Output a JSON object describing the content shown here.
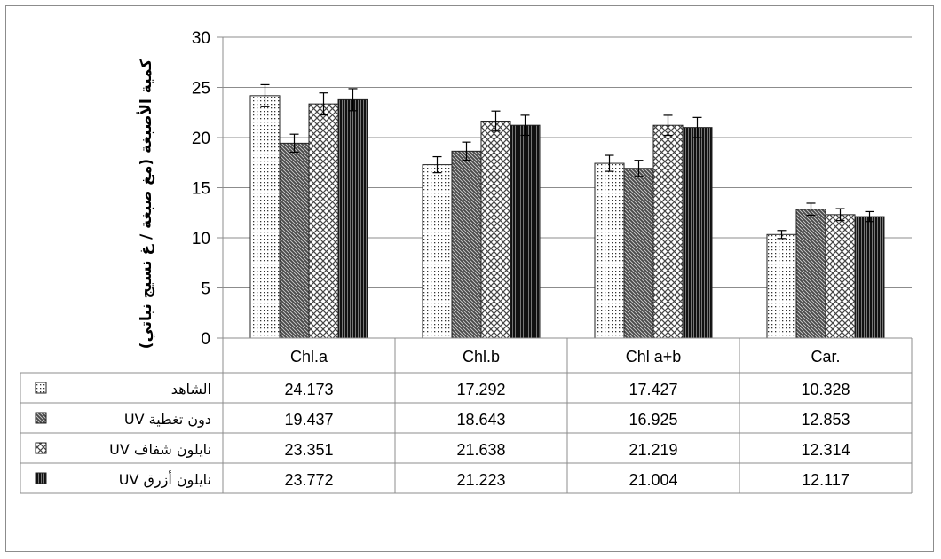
{
  "chart_data": {
    "type": "bar",
    "ylabel": "كمية الأصبغة (مغ صبغة / غ نسيج نباتي)",
    "ylim": [
      0,
      30
    ],
    "yticks": [
      0,
      5,
      10,
      15,
      20,
      25,
      30
    ],
    "grid": true,
    "categories": [
      "Chl.a",
      "Chl.b",
      "Chl a+b",
      "Car."
    ],
    "series": [
      {
        "name": "الشاهد",
        "values": [
          24.173,
          17.292,
          17.427,
          10.328
        ],
        "errors": [
          1.1,
          0.8,
          0.8,
          0.4
        ],
        "pattern": "dots"
      },
      {
        "name": "UV دون تغطية",
        "values": [
          19.437,
          18.643,
          16.925,
          12.853
        ],
        "errors": [
          0.9,
          0.9,
          0.8,
          0.6
        ],
        "pattern": "diag"
      },
      {
        "name": "UV نايلون شفاف",
        "values": [
          23.351,
          21.638,
          21.219,
          12.314
        ],
        "errors": [
          1.1,
          1.0,
          1.0,
          0.6
        ],
        "pattern": "cross"
      },
      {
        "name": "UV  نايلون أزرق",
        "values": [
          23.772,
          21.223,
          21.004,
          12.117
        ],
        "errors": [
          1.1,
          1.0,
          1.0,
          0.5
        ],
        "pattern": "vert"
      }
    ],
    "data_table": true
  }
}
